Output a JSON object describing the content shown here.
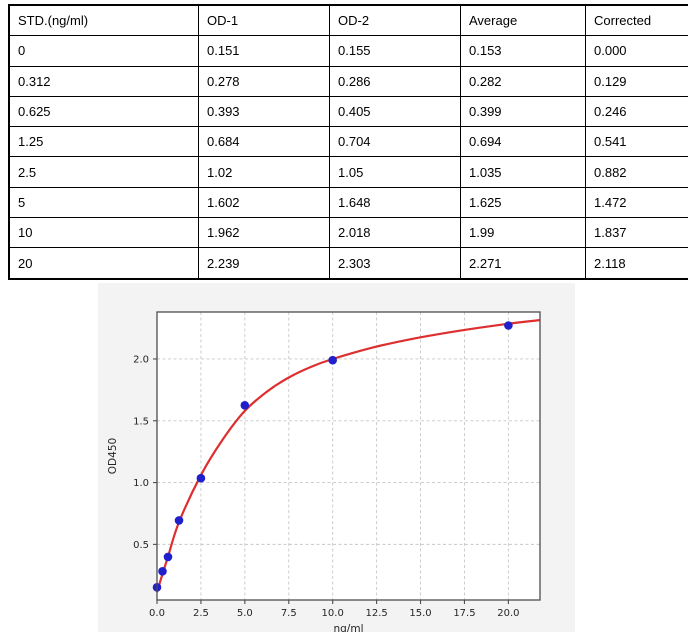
{
  "table": {
    "headers": [
      "STD.(ng/ml)",
      "OD-1",
      "OD-2",
      "Average",
      "Corrected"
    ],
    "rows": [
      [
        "0",
        "0.151",
        "0.155",
        "0.153",
        "0.000"
      ],
      [
        "0.312",
        "0.278",
        "0.286",
        "0.282",
        "0.129"
      ],
      [
        "0.625",
        "0.393",
        "0.405",
        "0.399",
        "0.246"
      ],
      [
        "1.25",
        "0.684",
        "0.704",
        "0.694",
        "0.541"
      ],
      [
        "2.5",
        "1.02",
        "1.05",
        "1.035",
        "0.882"
      ],
      [
        "5",
        "1.602",
        "1.648",
        "1.625",
        "1.472"
      ],
      [
        "10",
        "1.962",
        "2.018",
        "1.99",
        "1.837"
      ],
      [
        "20",
        "2.239",
        "2.303",
        "2.271",
        "2.118"
      ]
    ]
  },
  "chart_data": {
    "type": "scatter",
    "title": "",
    "xlabel": "ng/ml",
    "ylabel": "OD450",
    "x": [
      0,
      0.312,
      0.625,
      1.25,
      2.5,
      5,
      10,
      20
    ],
    "y": [
      0.153,
      0.282,
      0.399,
      0.694,
      1.035,
      1.625,
      1.99,
      2.271
    ],
    "fit_curve": [
      [
        0,
        0.115
      ],
      [
        0.312,
        0.26
      ],
      [
        0.625,
        0.4
      ],
      [
        1.25,
        0.68
      ],
      [
        2.5,
        1.06
      ],
      [
        3.75,
        1.35
      ],
      [
        5,
        1.58
      ],
      [
        6.25,
        1.735
      ],
      [
        7.5,
        1.85
      ],
      [
        8.75,
        1.935
      ],
      [
        10,
        2.0
      ],
      [
        12.5,
        2.1
      ],
      [
        15,
        2.175
      ],
      [
        17.5,
        2.235
      ],
      [
        20,
        2.285
      ],
      [
        21.8,
        2.315
      ]
    ],
    "xticks": [
      0,
      2.5,
      5,
      7.5,
      10,
      12.5,
      15,
      17.5,
      20
    ],
    "xtick_labels": [
      "0.0",
      "2.5",
      "5.0",
      "7.5",
      "10.0",
      "12.5",
      "15.0",
      "17.5",
      "20.0"
    ],
    "yticks": [
      0.5,
      1.0,
      1.5,
      2.0
    ],
    "ytick_labels": [
      "0.5",
      "1.0",
      "1.5",
      "2.0"
    ],
    "xlim": [
      0,
      21.8
    ],
    "ylim": [
      0.05,
      2.38
    ],
    "grid": true,
    "legend": null,
    "point_color": "#1f1fcc",
    "curve_color": "#dd2f2f",
    "grid_color": "#c8c8c8",
    "spine_color": "#4d4d4d",
    "tick_text_color": "#262626",
    "figure_bg": "#f3f3f3",
    "plot_bg": "#ffffff"
  }
}
